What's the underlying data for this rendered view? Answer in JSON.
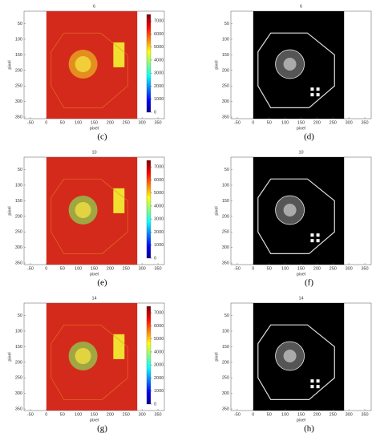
{
  "panels": [
    {
      "title": "6",
      "caption": "(c)",
      "kind": "heat",
      "xlabel": "pixel",
      "ylabel": "pixel",
      "xticks": [
        -50,
        0,
        50,
        100,
        150,
        200,
        250,
        300,
        350
      ],
      "yticks": [
        50,
        100,
        150,
        200,
        250,
        300,
        350
      ],
      "cbticks": [
        0,
        1000,
        2000,
        3000,
        4000,
        5000,
        6000,
        7000
      ]
    },
    {
      "title": "6",
      "caption": "(d)",
      "kind": "gray",
      "xlabel": "pixel",
      "ylabel": "pixel",
      "xticks": [
        -50,
        0,
        50,
        100,
        150,
        200,
        250,
        300,
        350
      ],
      "yticks": [
        50,
        100,
        150,
        200,
        250,
        300,
        350
      ]
    },
    {
      "title": "10",
      "caption": "(e)",
      "kind": "heat",
      "xlabel": "pixel",
      "ylabel": "pixel",
      "xticks": [
        -50,
        0,
        50,
        100,
        150,
        200,
        250,
        300,
        350
      ],
      "yticks": [
        50,
        100,
        150,
        200,
        250,
        300,
        350
      ],
      "cbticks": [
        0,
        1000,
        2000,
        3000,
        4000,
        5000,
        6000,
        7000
      ]
    },
    {
      "title": "10",
      "caption": "(f)",
      "kind": "gray",
      "xlabel": "pixel",
      "ylabel": "pixel",
      "xticks": [
        -50,
        0,
        50,
        100,
        150,
        200,
        250,
        300,
        350
      ],
      "yticks": [
        50,
        100,
        150,
        200,
        250,
        300,
        350
      ]
    },
    {
      "title": "14",
      "caption": "(g)",
      "kind": "heat",
      "xlabel": "pixel",
      "ylabel": "pixel",
      "xticks": [
        -50,
        0,
        50,
        100,
        150,
        200,
        250,
        300,
        350
      ],
      "yticks": [
        50,
        100,
        150,
        200,
        250,
        300,
        350
      ],
      "cbticks": [
        0,
        1000,
        2000,
        3000,
        4000,
        5000,
        6000,
        7000
      ]
    },
    {
      "title": "14",
      "caption": "(h)",
      "kind": "gray",
      "xlabel": "pixel",
      "ylabel": "pixel",
      "xticks": [
        -50,
        0,
        50,
        100,
        150,
        200,
        250,
        300,
        350
      ],
      "yticks": [
        50,
        100,
        150,
        200,
        250,
        300,
        350
      ]
    }
  ]
}
